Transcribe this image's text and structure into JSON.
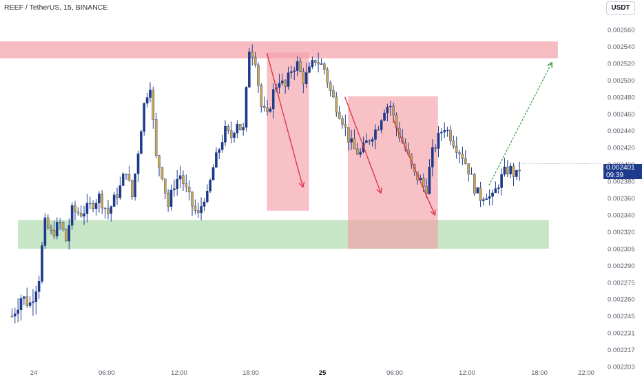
{
  "header": {
    "symbol_title": "REEF / TetherUS, 15, BINANCE",
    "currency_button": "USDT"
  },
  "last_price": {
    "price": "0.002401",
    "countdown": "09:39",
    "color": "#1e3a8a"
  },
  "colors": {
    "bull_candle": "#1e3a8a",
    "bear_candle": "#c9a64e",
    "resistance_zone": "#f4a0a8",
    "support_zone": "#a8d8a8",
    "down_arrow": "#e0354a",
    "projection_arrow": "#2e9a3c"
  },
  "chart_data": {
    "type": "candlestick",
    "title": "REEF / TetherUS, 15, BINANCE",
    "y_axis": {
      "position": "right",
      "ticks": [
        "0.002560",
        "0.002540",
        "0.002520",
        "0.002500",
        "0.002480",
        "0.002460",
        "0.002440",
        "0.002420",
        "0.002400",
        "0.002380",
        "0.002360",
        "0.002340",
        "0.002320",
        "0.002305",
        "0.002290",
        "0.002275",
        "0.002260",
        "0.002245",
        "0.002231",
        "0.002217",
        "0.002203"
      ]
    },
    "x_axis": {
      "ticks": [
        {
          "label": "24",
          "bold": false
        },
        {
          "label": "06:00",
          "bold": false
        },
        {
          "label": "12:00",
          "bold": false
        },
        {
          "label": "18:00",
          "bold": false
        },
        {
          "label": "25",
          "bold": true
        },
        {
          "label": "06:00",
          "bold": false
        },
        {
          "label": "12:00",
          "bold": false
        },
        {
          "label": "18:00",
          "bold": false
        },
        {
          "label": "22:00",
          "bold": false
        }
      ]
    },
    "zones": [
      {
        "type": "resistance",
        "from": "Mar 23 13:15",
        "to": "Mar 25 19:30",
        "low": 0.002526,
        "high": 0.002546
      },
      {
        "type": "support",
        "from": "Mar 23 22:30",
        "to": "Mar 25 18:45",
        "low": 0.002305,
        "high": 0.002334
      },
      {
        "type": "drop-box",
        "from": "Mar 24 19:15",
        "to": "Mar 24 22:45",
        "low": 0.002345,
        "high": 0.002533
      },
      {
        "type": "drop-box",
        "from": "Mar 25 02:00",
        "to": "Mar 25 09:30",
        "low": 0.002305,
        "high": 0.002481
      }
    ],
    "arrows": [
      {
        "kind": "down",
        "points": [
          [
            "Mar 24 19:15",
            0.002532
          ],
          [
            "Mar 24 22:15",
            0.002373
          ]
        ]
      },
      {
        "kind": "down",
        "points": [
          [
            "Mar 25 01:45",
            0.00248
          ],
          [
            "Mar 25 04:45",
            0.002366
          ]
        ]
      },
      {
        "kind": "down",
        "points": [
          [
            "Mar 25 05:45",
            0.002454
          ],
          [
            "Mar 25 09:15",
            0.00234
          ]
        ]
      },
      {
        "kind": "projection",
        "points": [
          [
            "Mar 25 13:45",
            0.002375
          ],
          [
            "Mar 25 19:00",
            0.002521
          ]
        ]
      }
    ],
    "close_path": [
      [
        "Mar 23 22:00",
        0.002245
      ],
      [
        "Mar 23 22:45",
        0.002262
      ],
      [
        "Mar 23 23:30",
        0.002256
      ],
      [
        "Mar 24 00:15",
        0.00228
      ],
      [
        "Mar 24 00:45",
        0.00233
      ],
      [
        "Mar 24 01:15",
        0.002318
      ],
      [
        "Mar 24 02:00",
        0.00233
      ],
      [
        "Mar 24 02:30",
        0.002312
      ],
      [
        "Mar 24 03:00",
        0.002345
      ],
      [
        "Mar 24 03:45",
        0.002342
      ],
      [
        "Mar 24 04:30",
        0.00235
      ],
      [
        "Mar 24 05:15",
        0.002362
      ],
      [
        "Mar 24 06:00",
        0.002342
      ],
      [
        "Mar 24 06:30",
        0.002358
      ],
      [
        "Mar 24 07:00",
        0.002372
      ],
      [
        "Mar 24 07:30",
        0.002395
      ],
      [
        "Mar 24 08:00",
        0.00236
      ],
      [
        "Mar 24 08:30",
        0.002415
      ],
      [
        "Mar 24 09:00",
        0.00247
      ],
      [
        "Mar 24 09:30",
        0.002498
      ],
      [
        "Mar 24 10:00",
        0.002408
      ],
      [
        "Mar 24 10:30",
        0.00239
      ],
      [
        "Mar 24 11:00",
        0.00235
      ],
      [
        "Mar 24 11:30",
        0.002376
      ],
      [
        "Mar 24 12:00",
        0.002388
      ],
      [
        "Mar 24 12:30",
        0.00237
      ],
      [
        "Mar 24 13:00",
        0.002352
      ],
      [
        "Mar 24 13:30",
        0.002338
      ],
      [
        "Mar 24 14:00",
        0.002362
      ],
      [
        "Mar 24 14:15",
        0.00236
      ],
      [
        "Mar 24 14:45",
        0.002395
      ],
      [
        "Mar 24 15:15",
        0.002418
      ],
      [
        "Mar 24 15:45",
        0.00244
      ],
      [
        "Mar 24 16:15",
        0.002432
      ],
      [
        "Mar 24 16:45",
        0.002452
      ],
      [
        "Mar 24 17:15",
        0.002436
      ],
      [
        "Mar 24 17:30",
        0.00248
      ],
      [
        "Mar 24 17:45",
        0.002538
      ],
      [
        "Mar 24 18:15",
        0.002528
      ],
      [
        "Mar 24 18:45",
        0.00247
      ],
      [
        "Mar 24 19:15",
        0.002455
      ],
      [
        "Mar 24 19:45",
        0.002485
      ],
      [
        "Mar 24 20:15",
        0.002502
      ],
      [
        "Mar 24 20:45",
        0.00249
      ],
      [
        "Mar 24 21:15",
        0.002512
      ],
      [
        "Mar 24 21:45",
        0.00252
      ],
      [
        "Mar 24 22:15",
        0.0025
      ],
      [
        "Mar 24 22:45",
        0.00251
      ],
      [
        "Mar 24 23:15",
        0.002525
      ],
      [
        "Mar 25 00:00",
        0.002515
      ],
      [
        "Mar 25 00:30",
        0.002488
      ],
      [
        "Mar 25 01:00",
        0.00247
      ],
      [
        "Mar 25 01:30",
        0.002455
      ],
      [
        "Mar 25 02:00",
        0.002432
      ],
      [
        "Mar 25 02:30",
        0.002418
      ],
      [
        "Mar 25 03:00",
        0.002412
      ],
      [
        "Mar 25 03:30",
        0.002425
      ],
      [
        "Mar 25 04:00",
        0.002435
      ],
      [
        "Mar 25 04:30",
        0.002445
      ],
      [
        "Mar 25 05:00",
        0.002466
      ],
      [
        "Mar 25 05:30",
        0.002472
      ],
      [
        "Mar 25 06:00",
        0.002445
      ],
      [
        "Mar 25 06:30",
        0.002428
      ],
      [
        "Mar 25 07:00",
        0.00241
      ],
      [
        "Mar 25 07:30",
        0.002388
      ],
      [
        "Mar 25 08:00",
        0.002382
      ],
      [
        "Mar 25 08:30",
        0.002368
      ],
      [
        "Mar 25 09:00",
        0.002412
      ],
      [
        "Mar 25 09:30",
        0.00243
      ],
      [
        "Mar 25 10:00",
        0.002446
      ],
      [
        "Mar 25 10:30",
        0.002435
      ],
      [
        "Mar 25 11:00",
        0.002422
      ],
      [
        "Mar 25 11:30",
        0.002412
      ],
      [
        "Mar 25 12:00",
        0.002396
      ],
      [
        "Mar 25 12:30",
        0.002374
      ],
      [
        "Mar 25 13:00",
        0.00236
      ],
      [
        "Mar 25 13:30",
        0.002366
      ],
      [
        "Mar 25 14:00",
        0.002358
      ],
      [
        "Mar 25 14:30",
        0.002376
      ],
      [
        "Mar 25 15:00",
        0.00239
      ],
      [
        "Mar 25 15:30",
        0.002395
      ],
      [
        "Mar 25 16:00",
        0.002385
      ],
      [
        "Mar 25 16:30",
        0.002401
      ]
    ]
  }
}
